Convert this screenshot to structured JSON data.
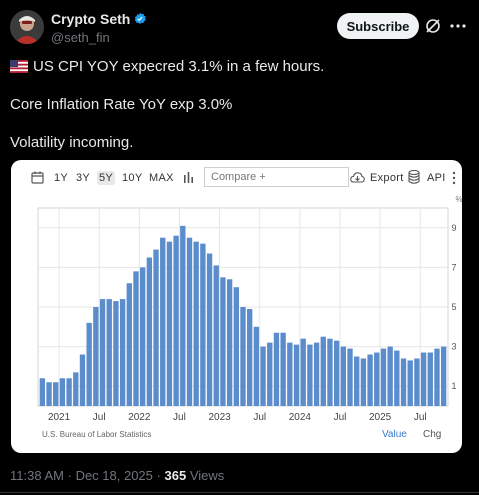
{
  "author": {
    "name": "Crypto Seth",
    "handle": "@seth_fin",
    "avatar_icon": "avatar-photo",
    "verified_color": "#1d9bf0"
  },
  "actions": {
    "subscribe_label": "Subscribe",
    "grok_icon": "slash-circle-icon",
    "more_icon": "more-dots-icon"
  },
  "tweet": {
    "line1": "US CPI YOY expecred 3.1% in a few hours.",
    "line1_flag": "us-flag",
    "line2": "Core Inflation Rate YoY exp 3.0%",
    "line3": "Volatility incoming."
  },
  "card": {
    "ranges": [
      "1Y",
      "3Y",
      "5Y",
      "10Y",
      "MAX"
    ],
    "active_range": "5Y",
    "compare_placeholder": "Compare +",
    "export_label": "Export",
    "api_label": "API",
    "source": "U.S. Bureau of Labor Statistics",
    "tab_value": "Value",
    "tab_chg": "Chg"
  },
  "chart_data": {
    "type": "bar",
    "bar_color": "#5b8ccc",
    "y_unit": "%",
    "ylim": [
      0,
      10
    ],
    "y_ticks": [
      1,
      3,
      5,
      7,
      9
    ],
    "x_labels": [
      {
        "label": "2021",
        "month_index": 3
      },
      {
        "label": "Jul",
        "month_index": 9
      },
      {
        "label": "2022",
        "month_index": 15
      },
      {
        "label": "Jul",
        "month_index": 21
      },
      {
        "label": "2023",
        "month_index": 27
      },
      {
        "label": "Jul",
        "month_index": 33
      },
      {
        "label": "2024",
        "month_index": 39
      },
      {
        "label": "Jul",
        "month_index": 45
      },
      {
        "label": "2025",
        "month_index": 51
      },
      {
        "label": "Jul",
        "month_index": 57
      }
    ],
    "values": [
      1.4,
      1.2,
      1.2,
      1.4,
      1.4,
      1.7,
      2.6,
      4.2,
      5.0,
      5.4,
      5.4,
      5.3,
      5.4,
      6.2,
      6.8,
      7.0,
      7.5,
      7.9,
      8.5,
      8.3,
      8.6,
      9.1,
      8.5,
      8.3,
      8.2,
      7.7,
      7.1,
      6.5,
      6.4,
      6.0,
      5.0,
      4.9,
      4.0,
      3.0,
      3.2,
      3.7,
      3.7,
      3.2,
      3.1,
      3.4,
      3.1,
      3.2,
      3.5,
      3.4,
      3.3,
      3.0,
      2.9,
      2.5,
      2.4,
      2.6,
      2.7,
      2.9,
      3.0,
      2.8,
      2.4,
      2.3,
      2.4,
      2.7,
      2.7,
      2.9,
      3.0
    ]
  },
  "meta": {
    "time": "11:38 AM",
    "sep1": "·",
    "date": "Dec 18, 2025",
    "sep2": "·",
    "views": "365",
    "views_label": "Views"
  }
}
